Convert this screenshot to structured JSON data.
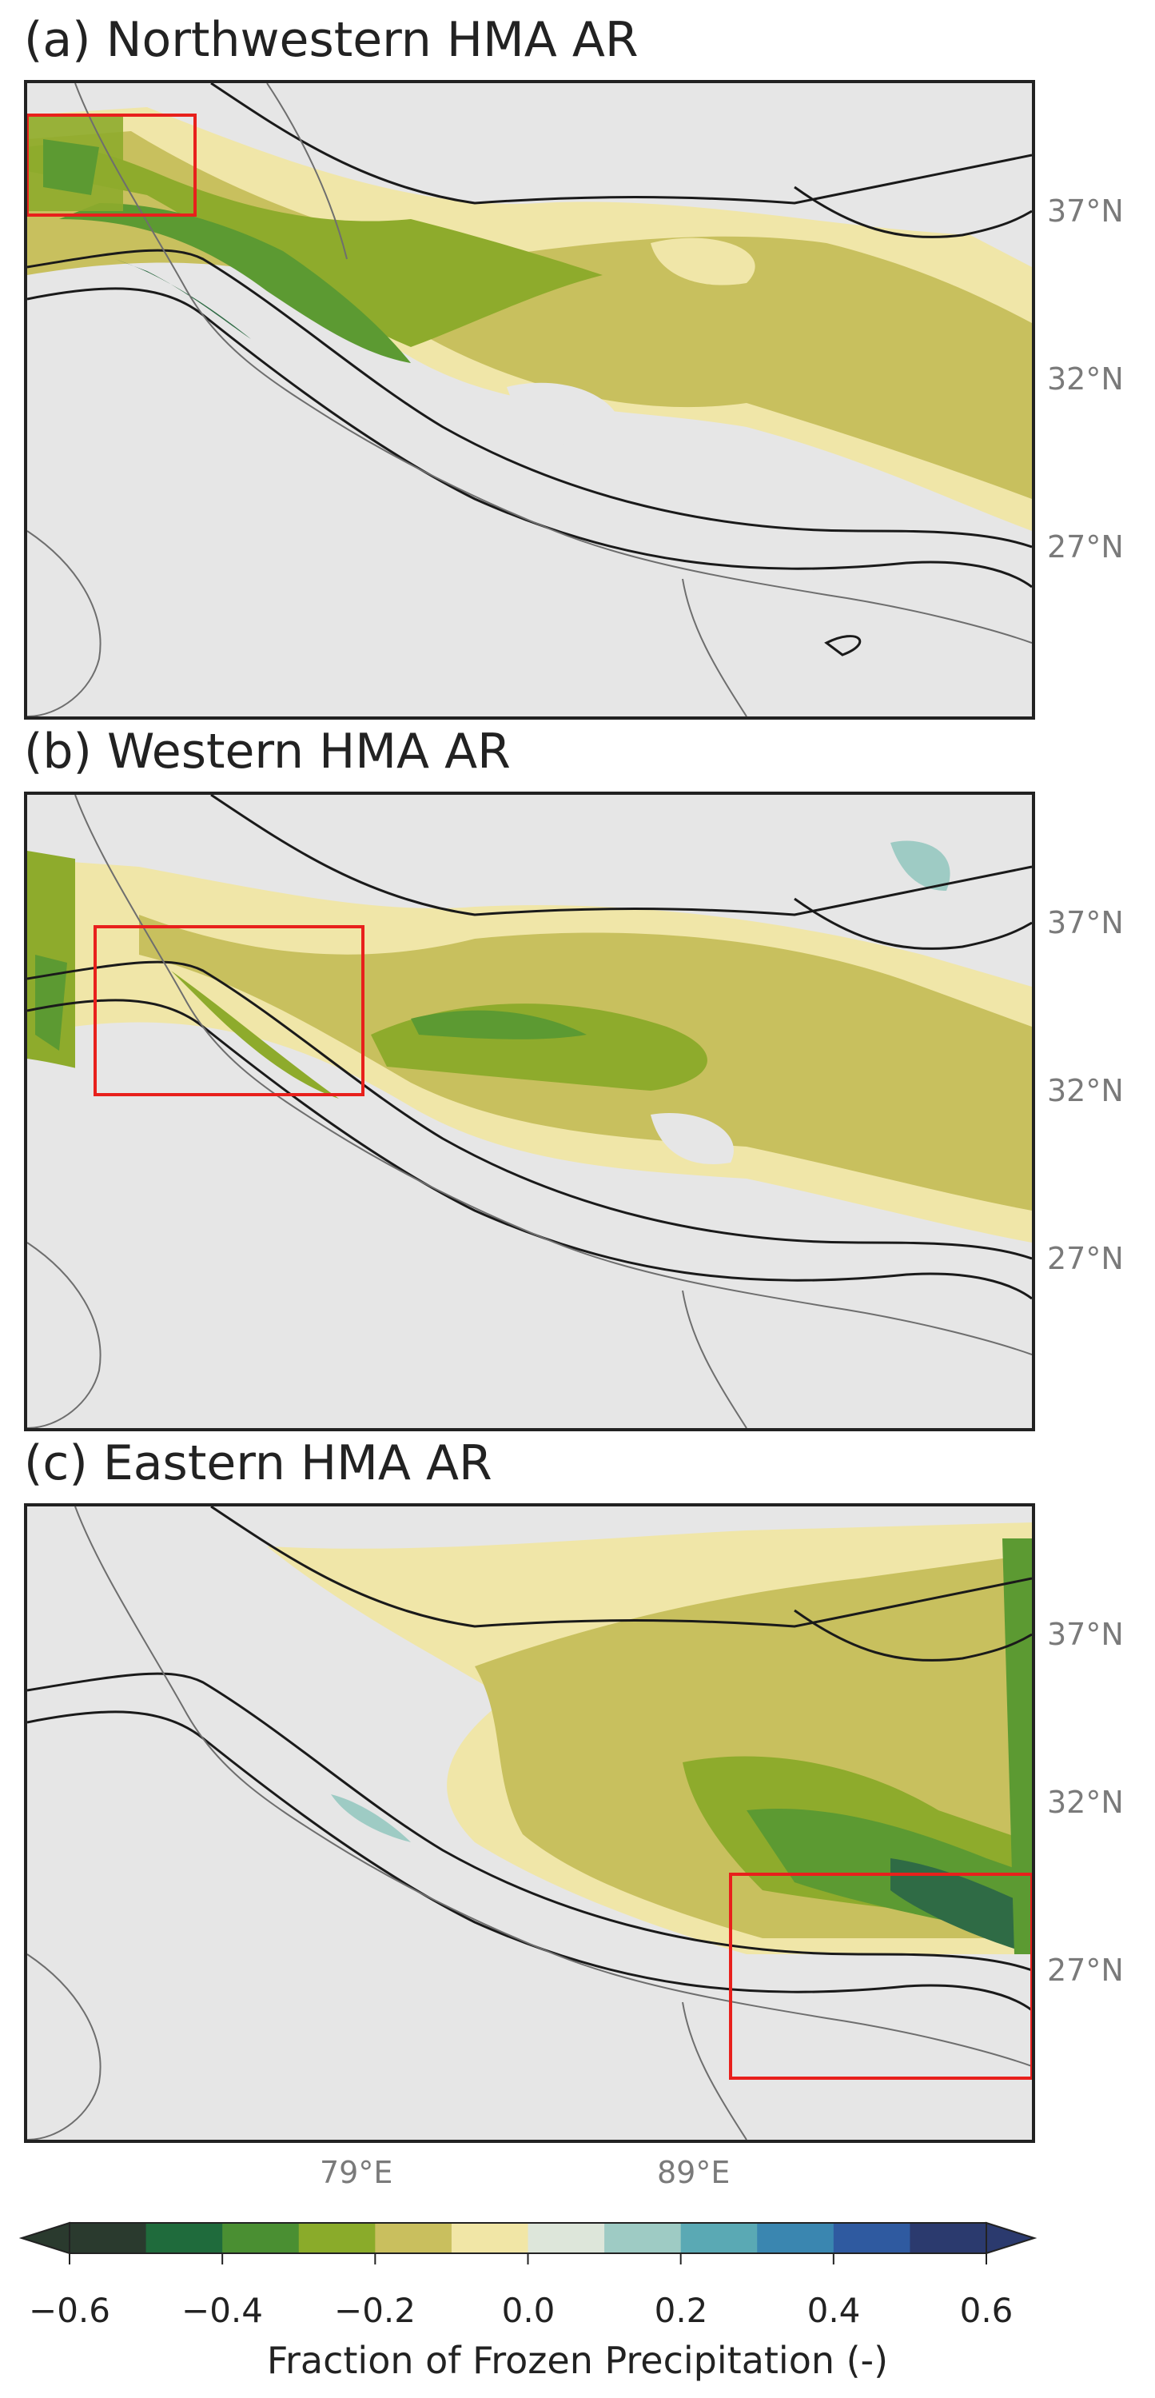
{
  "panels": [
    {
      "title": "(a) Northwestern HMA AR"
    },
    {
      "title": "(b) Western HMA AR"
    },
    {
      "title": "(c) Eastern HMA AR"
    }
  ],
  "lat_labels": [
    "37°N",
    "32°N",
    "27°N"
  ],
  "lon_labels": [
    "79°E",
    "89°E"
  ],
  "colorbar": {
    "label": "Fraction of Frozen Precipitation (-)",
    "ticks": [
      "−0.6",
      "−0.4",
      "−0.2",
      "0.0",
      "0.2",
      "0.4",
      "0.6"
    ],
    "colors": [
      "#2a3a2e",
      "#1f6b3c",
      "#4a8f32",
      "#8aab2a",
      "#c9bf5e",
      "#f1e6a6",
      "#dde6da",
      "#9ecbc4",
      "#5aa9b4",
      "#3a86b0",
      "#2f5aa0",
      "#2b3a6e"
    ]
  },
  "map_colors": {
    "background": "#e6e6e6",
    "dark_green": "#2f6b45",
    "green": "#5c9a32",
    "olive": "#8eab2c",
    "khaki": "#c8c05e",
    "pale": "#f0e6a8",
    "teal": "#9ecbc4",
    "contour": "#1a1a1a",
    "border": "#6e6e6e",
    "box": "#e8201c"
  }
}
